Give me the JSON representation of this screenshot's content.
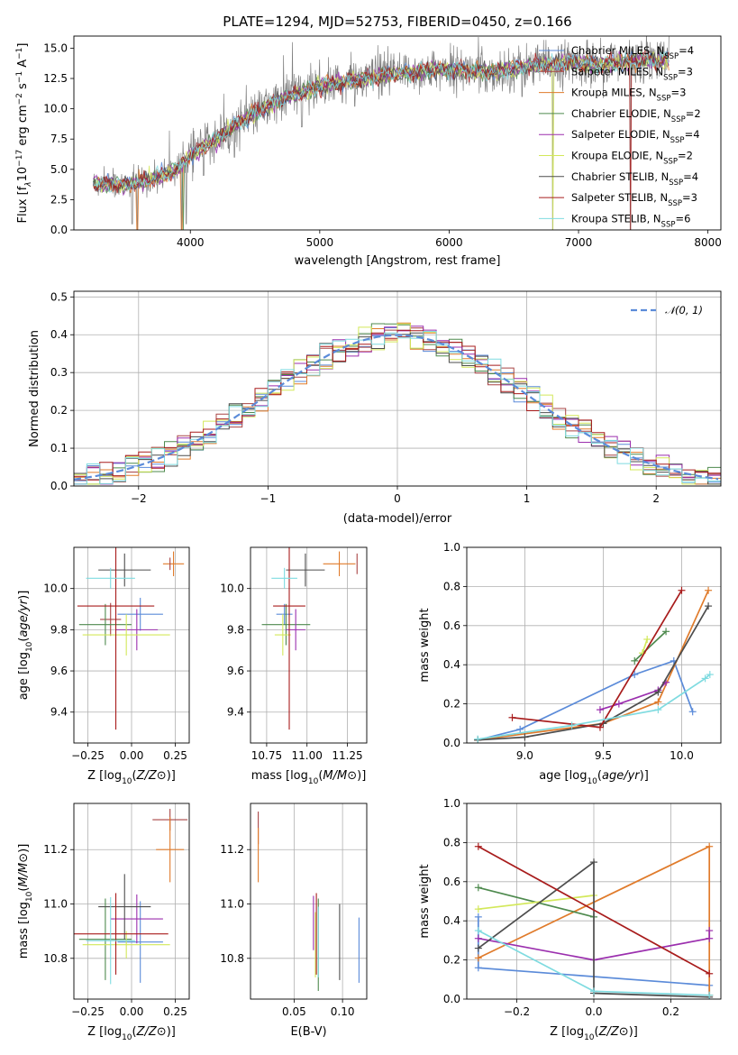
{
  "figure": {
    "title": "PLATE=1294, MJD=52753, FIBERID=0450, z=0.166"
  },
  "colors": {
    "chabrier_miles": "#5b8bd9",
    "salpeter_miles": "#a84444",
    "kroupa_miles": "#e07b2b",
    "chabrier_elodie": "#4e8a4e",
    "salpeter_elodie": "#9b2fae",
    "kroupa_elodie": "#d3e85a",
    "chabrier_stelib": "#4d4d4d",
    "salpeter_stelib": "#a81c1c",
    "kroupa_stelib": "#7fdbe0",
    "observed": "#808080",
    "normal": "#5b8bd9"
  },
  "chart_data": [
    {
      "id": "spectrum",
      "type": "line",
      "title": "PLATE=1294, MJD=52753, FIBERID=0450, z=0.166",
      "xlabel": "wavelength [Angstrom, rest frame]",
      "ylabel_parts": [
        "Flux [f",
        "λ",
        "10",
        "−17",
        " erg cm",
        "−2",
        " s",
        "−1",
        " A",
        "−1",
        "]"
      ],
      "xlim": [
        3100,
        8100
      ],
      "ylim": [
        0,
        16
      ],
      "xticks": [
        "4000",
        "5000",
        "6000",
        "7000",
        "8000"
      ],
      "yticks": [
        "0.0",
        "2.5",
        "5.0",
        "7.5",
        "10.0",
        "12.5",
        "15.0"
      ],
      "legend_position": "top-right",
      "legend": [
        {
          "main": "Chabrier MILES, N",
          "sub": "SSP",
          "tail": "=4",
          "color_key": "chabrier_miles"
        },
        {
          "main": "Salpeter MILES, N",
          "sub": "SSP",
          "tail": "=3",
          "color_key": "salpeter_miles"
        },
        {
          "main": "Kroupa MILES, N",
          "sub": "SSP",
          "tail": "=3",
          "color_key": "kroupa_miles"
        },
        {
          "main": "Chabrier ELODIE, N",
          "sub": "SSP",
          "tail": "=2",
          "color_key": "chabrier_elodie"
        },
        {
          "main": "Salpeter ELODIE, N",
          "sub": "SSP",
          "tail": "=4",
          "color_key": "salpeter_elodie"
        },
        {
          "main": "Kroupa ELODIE, N",
          "sub": "SSP",
          "tail": "=2",
          "color_key": "kroupa_elodie"
        },
        {
          "main": "Chabrier STELIB, N",
          "sub": "SSP",
          "tail": "=4",
          "color_key": "chabrier_stelib"
        },
        {
          "main": "Salpeter STELIB, N",
          "sub": "SSP",
          "tail": "=3",
          "color_key": "salpeter_stelib"
        },
        {
          "main": "Kroupa STELIB, N",
          "sub": "SSP",
          "tail": "=6",
          "color_key": "kroupa_stelib"
        }
      ],
      "continuum_knots": [
        [
          3250,
          3.8
        ],
        [
          3500,
          3.7
        ],
        [
          3700,
          4.2
        ],
        [
          3900,
          5.0
        ],
        [
          4000,
          6.2
        ],
        [
          4200,
          7.5
        ],
        [
          4400,
          9.0
        ],
        [
          4700,
          10.8
        ],
        [
          5000,
          11.9
        ],
        [
          5300,
          12.4
        ],
        [
          5600,
          12.9
        ],
        [
          6000,
          13.3
        ],
        [
          6300,
          13.0
        ],
        [
          6600,
          13.5
        ],
        [
          6900,
          13.8
        ],
        [
          7200,
          13.7
        ],
        [
          7500,
          14.0
        ],
        [
          7700,
          14.0
        ]
      ],
      "dips": [
        [
          3550,
          0.5
        ],
        [
          3590,
          0.0
        ],
        [
          3933,
          0.0
        ],
        [
          3968,
          0.5
        ],
        [
          4102,
          4.5
        ],
        [
          4304,
          7.0
        ],
        [
          4340,
          6.0
        ],
        [
          4861,
          8.5
        ],
        [
          5175,
          10.5
        ],
        [
          5270,
          10.2
        ],
        [
          6563,
          11.0
        ],
        [
          6800,
          0.0
        ],
        [
          7400,
          0.0
        ]
      ]
    },
    {
      "id": "residuals",
      "type": "histogram",
      "xlabel": "(data-model)/error",
      "ylabel": "Normed distribution",
      "xlim": [
        -2.5,
        2.5
      ],
      "ylim": [
        0,
        0.515
      ],
      "xticks": [
        "−2",
        "−1",
        "0",
        "1",
        "2"
      ],
      "yticks": [
        "0.0",
        "0.1",
        "0.2",
        "0.3",
        "0.4",
        "0.5"
      ],
      "legend_position": "top-right",
      "legend_label": "𝒩(0, 1)",
      "bin_width": 0.1
    },
    {
      "id": "z_age",
      "type": "scatter",
      "xlabel": "Z [log10(Z/Z⊙)]",
      "ylabel": "age  [log10(age/yr)]",
      "xlim": [
        -0.33,
        0.33
      ],
      "ylim": [
        9.25,
        10.2
      ],
      "xticks": [
        "−0.25",
        "0.00",
        "0.25"
      ],
      "yticks": [
        "9.4",
        "9.6",
        "9.8",
        "10.0"
      ],
      "points": [
        {
          "c": "chabrier_miles",
          "x": 0.05,
          "y": 9.875,
          "xe": 0.13,
          "ye": 0.08
        },
        {
          "c": "salpeter_miles",
          "x": -0.12,
          "y": 9.85,
          "xe": 0.06,
          "ye": 0.08
        },
        {
          "c": "kroupa_miles",
          "x": 0.24,
          "y": 10.12,
          "xe": 0.06,
          "ye": 0.06
        },
        {
          "c": "chabrier_elodie",
          "x": -0.15,
          "y": 9.825,
          "xe": 0.15,
          "ye": 0.1
        },
        {
          "c": "salpeter_elodie",
          "x": 0.03,
          "y": 9.8,
          "xe": 0.12,
          "ye": 0.1
        },
        {
          "c": "kroupa_elodie",
          "x": -0.03,
          "y": 9.775,
          "xe": 0.25,
          "ye": 0.1
        },
        {
          "c": "chabrier_stelib",
          "x": -0.04,
          "y": 10.09,
          "xe": 0.15,
          "ye": 0.08
        },
        {
          "c": "salpeter_stelib",
          "x": -0.09,
          "y": 9.915,
          "xe": 0.22,
          "ye": 0.6
        },
        {
          "c": "kroupa_stelib",
          "x": -0.12,
          "y": 10.05,
          "xe": 0.14,
          "ye": 0.05
        },
        {
          "c": "salpeter_miles",
          "x": 0.22,
          "y": 10.12,
          "xe": 0.0,
          "ye": 0.03
        }
      ]
    },
    {
      "id": "mass_age",
      "type": "scatter",
      "xlabel": "mass [log10(M/M⊙)]",
      "ylabel": "",
      "xlim": [
        10.65,
        11.37
      ],
      "ylim": [
        9.25,
        10.2
      ],
      "xticks": [
        "10.75",
        "11.00",
        "11.25"
      ],
      "yticks": [
        "9.4",
        "9.6",
        "9.8",
        "10.0"
      ],
      "points": [
        {
          "c": "chabrier_miles",
          "x": 10.86,
          "y": 9.875,
          "xe": 0.05,
          "ye": 0.05
        },
        {
          "c": "salpeter_miles",
          "x": 11.31,
          "y": 10.12,
          "xe": 0.0,
          "ye": 0.05
        },
        {
          "c": "kroupa_miles",
          "x": 11.2,
          "y": 10.12,
          "xe": 0.1,
          "ye": 0.06
        },
        {
          "c": "chabrier_elodie",
          "x": 10.87,
          "y": 9.825,
          "xe": 0.15,
          "ye": 0.1
        },
        {
          "c": "salpeter_elodie",
          "x": 10.93,
          "y": 9.8,
          "xe": 0.06,
          "ye": 0.1
        },
        {
          "c": "kroupa_elodie",
          "x": 10.85,
          "y": 9.775,
          "xe": 0.05,
          "ye": 0.1
        },
        {
          "c": "chabrier_stelib",
          "x": 10.99,
          "y": 10.09,
          "xe": 0.12,
          "ye": 0.08
        },
        {
          "c": "salpeter_stelib",
          "x": 10.89,
          "y": 9.915,
          "xe": 0.1,
          "ye": 0.6
        },
        {
          "c": "kroupa_stelib",
          "x": 10.86,
          "y": 10.05,
          "xe": 0.08,
          "ye": 0.05
        }
      ]
    },
    {
      "id": "age_weight",
      "type": "line",
      "xlabel": "age  [log10(age/yr)]",
      "ylabel": "mass weight",
      "xlim": [
        8.63,
        10.25
      ],
      "ylim": [
        0,
        1
      ],
      "xticks": [
        "9.0",
        "9.5",
        "10.0"
      ],
      "yticks": [
        "0.0",
        "0.2",
        "0.4",
        "0.6",
        "0.8",
        "1.0"
      ],
      "series": [
        {
          "c": "chabrier_miles",
          "x": [
            8.7,
            8.97,
            9.7,
            9.95,
            10.07
          ],
          "y": [
            0.015,
            0.07,
            0.35,
            0.42,
            0.16
          ]
        },
        {
          "c": "kroupa_miles",
          "x": [
            8.7,
            9.5,
            9.85,
            10.17
          ],
          "y": [
            0.015,
            0.1,
            0.21,
            0.78
          ]
        },
        {
          "c": "chabrier_elodie",
          "x": [
            9.7,
            9.9
          ],
          "y": [
            0.42,
            0.57
          ]
        },
        {
          "c": "salpeter_elodie",
          "x": [
            9.48,
            9.6,
            9.85,
            9.9
          ],
          "y": [
            0.17,
            0.2,
            0.27,
            0.31
          ]
        },
        {
          "c": "kroupa_elodie",
          "x": [
            9.75,
            9.78
          ],
          "y": [
            0.46,
            0.53
          ]
        },
        {
          "c": "chabrier_stelib",
          "x": [
            8.7,
            9.0,
            9.5,
            9.85,
            10.17
          ],
          "y": [
            0.015,
            0.03,
            0.1,
            0.26,
            0.7
          ]
        },
        {
          "c": "salpeter_stelib",
          "x": [
            8.92,
            9.48,
            10.0
          ],
          "y": [
            0.13,
            0.08,
            0.78
          ]
        },
        {
          "c": "kroupa_stelib",
          "x": [
            8.7,
            9.3,
            9.85,
            10.15,
            10.18
          ],
          "y": [
            0.02,
            0.09,
            0.17,
            0.33,
            0.35
          ]
        }
      ]
    },
    {
      "id": "z_mass",
      "type": "scatter",
      "xlabel": "Z [log10(Z/Z⊙)]",
      "ylabel": "mass [log10(M/M⊙)]",
      "xlim": [
        -0.33,
        0.33
      ],
      "ylim": [
        10.65,
        11.37
      ],
      "xticks": [
        "−0.25",
        "0.00",
        "0.25"
      ],
      "yticks": [
        "10.8",
        "11.0",
        "11.2"
      ],
      "points": [
        {
          "c": "chabrier_miles",
          "x": 0.05,
          "y": 10.86,
          "xe": 0.13,
          "ye": 0.15
        },
        {
          "c": "salpeter_miles",
          "x": 0.22,
          "y": 11.31,
          "xe": 0.1,
          "ye": 0.04
        },
        {
          "c": "kroupa_miles",
          "x": 0.22,
          "y": 11.2,
          "xe": 0.08,
          "ye": 0.12
        },
        {
          "c": "chabrier_elodie",
          "x": -0.15,
          "y": 10.87,
          "xe": 0.15,
          "ye": 0.15
        },
        {
          "c": "salpeter_elodie",
          "x": 0.03,
          "y": 10.945,
          "xe": 0.15,
          "ye": 0.09
        },
        {
          "c": "kroupa_elodie",
          "x": -0.03,
          "y": 10.85,
          "xe": 0.25,
          "ye": 0.05
        },
        {
          "c": "chabrier_stelib",
          "x": -0.04,
          "y": 10.99,
          "xe": 0.15,
          "ye": 0.12
        },
        {
          "c": "salpeter_stelib",
          "x": -0.09,
          "y": 10.89,
          "xe": 0.3,
          "ye": 0.15
        },
        {
          "c": "kroupa_stelib",
          "x": -0.12,
          "y": 10.865,
          "xe": 0.14,
          "ye": 0.16
        }
      ]
    },
    {
      "id": "ebv_mass",
      "type": "scatter",
      "xlabel": "E(B-V)",
      "ylabel": "",
      "xlim": [
        0.005,
        0.125
      ],
      "ylim": [
        10.65,
        11.37
      ],
      "xticks": [
        "0.05",
        "0.10"
      ],
      "yticks": [
        "10.8",
        "11.0",
        "11.2"
      ],
      "points": [
        {
          "c": "chabrier_miles",
          "x": 0.117,
          "y": 10.83,
          "xe": 0.0,
          "ye": 0.12
        },
        {
          "c": "salpeter_miles",
          "x": 0.013,
          "y": 11.28,
          "xe": 0.0,
          "ye": 0.06
        },
        {
          "c": "kroupa_miles",
          "x": 0.013,
          "y": 11.18,
          "xe": 0.0,
          "ye": 0.1
        },
        {
          "c": "chabrier_elodie",
          "x": 0.075,
          "y": 10.85,
          "xe": 0.0,
          "ye": 0.17
        },
        {
          "c": "salpeter_elodie",
          "x": 0.07,
          "y": 10.93,
          "xe": 0.0,
          "ye": 0.1
        },
        {
          "c": "kroupa_elodie",
          "x": 0.072,
          "y": 10.85,
          "xe": 0.0,
          "ye": 0.12
        },
        {
          "c": "chabrier_stelib",
          "x": 0.097,
          "y": 10.86,
          "xe": 0.0,
          "ye": 0.14
        },
        {
          "c": "salpeter_stelib",
          "x": 0.073,
          "y": 10.89,
          "xe": 0.0,
          "ye": 0.15
        },
        {
          "c": "kroupa_stelib",
          "x": 0.075,
          "y": 10.86,
          "xe": 0.0,
          "ye": 0.13
        }
      ]
    },
    {
      "id": "z_weight",
      "type": "line",
      "xlabel": "Z [log10(Z/Z⊙)]",
      "ylabel": "mass weight",
      "xlim": [
        -0.33,
        0.33
      ],
      "ylim": [
        0,
        1
      ],
      "xticks": [
        "−0.2",
        "0.0",
        "0.2"
      ],
      "yticks": [
        "0.0",
        "0.2",
        "0.4",
        "0.6",
        "0.8",
        "1.0"
      ],
      "series": [
        {
          "c": "chabrier_miles",
          "x": [
            -0.3,
            -0.3,
            0.3,
            0.3
          ],
          "y": [
            0.42,
            0.16,
            0.07,
            0.02
          ]
        },
        {
          "c": "kroupa_miles",
          "x": [
            -0.3,
            0.3,
            0.3
          ],
          "y": [
            0.21,
            0.78,
            0.02
          ]
        },
        {
          "c": "chabrier_elodie",
          "x": [
            -0.3,
            0.0
          ],
          "y": [
            0.57,
            0.42
          ]
        },
        {
          "c": "salpeter_elodie",
          "x": [
            -0.3,
            0.0,
            0.3,
            0.3
          ],
          "y": [
            0.31,
            0.2,
            0.31,
            0.35
          ]
        },
        {
          "c": "kroupa_elodie",
          "x": [
            -0.3,
            0.0
          ],
          "y": [
            0.46,
            0.53
          ]
        },
        {
          "c": "chabrier_stelib",
          "x": [
            -0.3,
            0.0,
            0.0,
            0.3
          ],
          "y": [
            0.26,
            0.7,
            0.03,
            0.01
          ]
        },
        {
          "c": "salpeter_stelib",
          "x": [
            -0.3,
            0.3
          ],
          "y": [
            0.78,
            0.13
          ]
        },
        {
          "c": "kroupa_stelib",
          "x": [
            -0.3,
            0.0,
            0.3
          ],
          "y": [
            0.35,
            0.04,
            0.02
          ]
        }
      ]
    }
  ]
}
